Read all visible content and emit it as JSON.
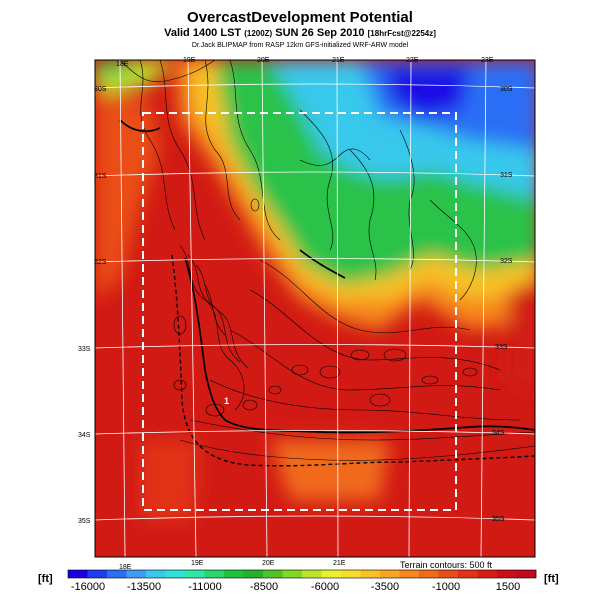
{
  "header": {
    "title": "OvercastDevelopment Potential",
    "subtitle_main": "Valid 1400 LST",
    "subtitle_small": "(1200Z)",
    "subtitle_date": "SUN 26 Sep 2010",
    "subtitle_fcst": "[18hrFcst@2254z]",
    "credit": "Dr.Jack BLIPMAP from RASP 12km GFS-initialized WRF-ARW model"
  },
  "map": {
    "lon_labels_top": [
      "18E",
      "19E",
      "20E",
      "21E",
      "22E",
      "23E"
    ],
    "lon_labels_bottom": [
      "18E",
      "19E",
      "20E",
      "21E"
    ],
    "lat_labels_left": [
      "30S",
      "31S",
      "32S",
      "33S",
      "34S",
      "35S"
    ],
    "lat_labels_right": [
      "30S",
      "31S",
      "32S",
      "33S",
      "34S",
      "35S"
    ],
    "marker_label": "1",
    "terrain_note": "Terrain contours: 500 ft"
  },
  "colorbar": {
    "unit_left": "[ft]",
    "unit_right": "[ft]",
    "tick_labels": [
      "-16000",
      "-13500",
      "-11000",
      "-8500",
      "-6000",
      "-3500",
      "-1000",
      "1500"
    ],
    "colors": [
      "#1a00e6",
      "#1f3cf0",
      "#2a6ef5",
      "#3f9bf5",
      "#38c8ec",
      "#2fe3d4",
      "#2ee6a6",
      "#28d66c",
      "#1fc23c",
      "#24b22a",
      "#4fc226",
      "#82d627",
      "#b9e62d",
      "#e8f230",
      "#f7de2c",
      "#f8c227",
      "#f8a523",
      "#f5871f",
      "#f16a1b",
      "#ea4e18",
      "#e23316",
      "#d81d14",
      "#cc0f16",
      "#c0081e"
    ]
  }
}
